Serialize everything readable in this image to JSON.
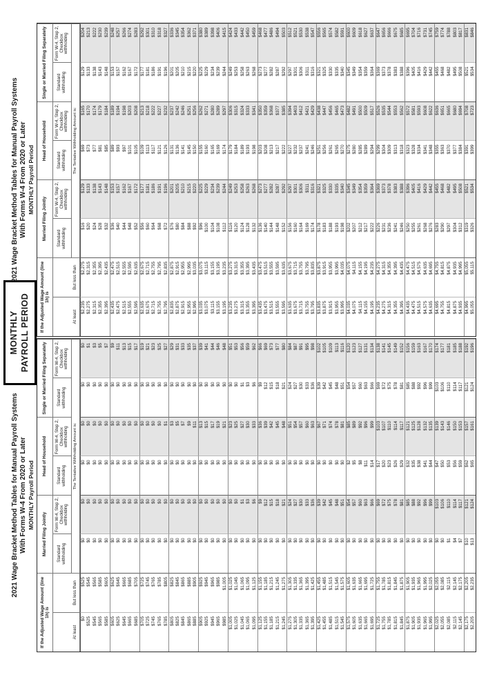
{
  "page": {
    "box_line1": "MONTHLY",
    "box_line2": "PAYROLL PERIOD"
  },
  "header": {
    "wage_label": "If the Adjusted Wage Amount (line 1h) is",
    "at_least": "At least",
    "but_less_than": "But less than",
    "groups": [
      "Married Filing Jointly",
      "Head of Household",
      "Single or Married Filing Separately"
    ],
    "standard": "Standard withholding",
    "checkbox": "Form W-4, Step 2, Checkbox withholding",
    "tentative": "The Tentative Withholding Amount is:"
  },
  "colors": {
    "shade": "#e4e4e4"
  },
  "tables": [
    {
      "title1": "2021 Wage Bracket Method Tables for Manual Payroll Systems",
      "title2": "With Forms W-4 From 2020 or Later",
      "title3": "MONTHLY Payroll Period",
      "rows": [
        [
          0,
          525,
          0,
          0,
          0,
          0,
          0,
          0
        ],
        [
          525,
          545,
          0,
          0,
          0,
          0,
          0,
          1
        ],
        [
          545,
          565,
          0,
          0,
          0,
          0,
          0,
          3
        ],
        [
          565,
          585,
          0,
          0,
          0,
          0,
          0,
          5
        ],
        [
          585,
          605,
          0,
          0,
          0,
          0,
          0,
          7
        ],
        [
          605,
          625,
          0,
          0,
          0,
          0,
          0,
          9
        ],
        [
          625,
          645,
          0,
          0,
          0,
          0,
          0,
          11
        ],
        [
          645,
          665,
          0,
          0,
          0,
          0,
          0,
          13
        ],
        [
          665,
          685,
          0,
          0,
          0,
          0,
          0,
          15
        ],
        [
          685,
          705,
          0,
          0,
          0,
          0,
          0,
          17
        ],
        [
          705,
          725,
          0,
          0,
          0,
          0,
          0,
          19
        ],
        [
          725,
          745,
          0,
          0,
          0,
          0,
          0,
          21
        ],
        [
          745,
          765,
          0,
          0,
          0,
          0,
          0,
          23
        ],
        [
          765,
          785,
          0,
          0,
          0,
          0,
          0,
          25
        ],
        [
          785,
          805,
          0,
          0,
          0,
          1,
          0,
          27
        ],
        [
          805,
          825,
          0,
          0,
          0,
          3,
          0,
          29
        ],
        [
          825,
          845,
          0,
          0,
          0,
          5,
          0,
          31
        ],
        [
          845,
          865,
          0,
          0,
          0,
          7,
          0,
          33
        ],
        [
          865,
          885,
          0,
          0,
          0,
          9,
          0,
          35
        ],
        [
          885,
          905,
          0,
          0,
          0,
          11,
          0,
          37
        ],
        [
          905,
          925,
          0,
          0,
          0,
          13,
          0,
          39
        ],
        [
          925,
          945,
          0,
          0,
          0,
          15,
          0,
          41
        ],
        [
          945,
          965,
          0,
          0,
          0,
          17,
          0,
          44
        ],
        [
          965,
          985,
          0,
          0,
          0,
          19,
          0,
          46
        ],
        [
          985,
          1005,
          0,
          0,
          0,
          21,
          0,
          48
        ],
        [
          1005,
          1025,
          0,
          0,
          0,
          23,
          0,
          51
        ],
        [
          1025,
          1045,
          0,
          0,
          0,
          25,
          0,
          53
        ],
        [
          1045,
          1065,
          0,
          1,
          0,
          27,
          1,
          56
        ],
        [
          1065,
          1095,
          0,
          3,
          0,
          30,
          3,
          59
        ],
        [
          1095,
          1125,
          0,
          6,
          0,
          33,
          6,
          62
        ],
        [
          1125,
          1155,
          0,
          9,
          0,
          36,
          9,
          66
        ],
        [
          1155,
          1185,
          0,
          12,
          0,
          39,
          12,
          69
        ],
        [
          1185,
          1215,
          0,
          15,
          0,
          42,
          15,
          73
        ],
        [
          1215,
          1245,
          0,
          18,
          0,
          45,
          18,
          77
        ],
        [
          1245,
          1275,
          0,
          21,
          0,
          48,
          21,
          80
        ],
        [
          1275,
          1305,
          0,
          24,
          0,
          51,
          24,
          84
        ],
        [
          1305,
          1335,
          0,
          27,
          0,
          54,
          27,
          87
        ],
        [
          1335,
          1365,
          0,
          30,
          0,
          57,
          30,
          91
        ],
        [
          1365,
          1395,
          0,
          33,
          0,
          60,
          33,
          95
        ],
        [
          1395,
          1425,
          0,
          36,
          0,
          63,
          36,
          98
        ],
        [
          1425,
          1455,
          0,
          39,
          0,
          67,
          39,
          102
        ],
        [
          1455,
          1485,
          0,
          42,
          0,
          71,
          42,
          105
        ],
        [
          1485,
          1515,
          0,
          45,
          0,
          74,
          45,
          109
        ],
        [
          1515,
          1545,
          0,
          48,
          0,
          78,
          48,
          113
        ],
        [
          1545,
          1575,
          0,
          51,
          0,
          81,
          51,
          116
        ],
        [
          1575,
          1605,
          0,
          54,
          2,
          85,
          54,
          120
        ],
        [
          1605,
          1635,
          0,
          57,
          5,
          89,
          57,
          123
        ],
        [
          1635,
          1665,
          0,
          60,
          8,
          92,
          60,
          127
        ],
        [
          1665,
          1695,
          0,
          63,
          11,
          96,
          63,
          131
        ],
        [
          1695,
          1725,
          0,
          66,
          14,
          99,
          66,
          134
        ],
        [
          1725,
          1755,
          0,
          69,
          17,
          103,
          69,
          138
        ],
        [
          1755,
          1785,
          0,
          72,
          20,
          107,
          72,
          141
        ],
        [
          1785,
          1815,
          0,
          75,
          23,
          110,
          75,
          145
        ],
        [
          1815,
          1845,
          0,
          78,
          26,
          114,
          78,
          149
        ],
        [
          1845,
          1875,
          0,
          81,
          29,
          117,
          81,
          152
        ],
        [
          1875,
          1905,
          0,
          85,
          32,
          121,
          85,
          156
        ],
        [
          1905,
          1935,
          0,
          88,
          35,
          125,
          88,
          159
        ],
        [
          1935,
          1965,
          0,
          92,
          38,
          128,
          92,
          163
        ],
        [
          1965,
          1995,
          0,
          96,
          41,
          132,
          96,
          167
        ],
        [
          1995,
          2025,
          0,
          99,
          44,
          135,
          99,
          170
        ],
        [
          2025,
          2055,
          0,
          103,
          47,
          139,
          103,
          174
        ],
        [
          2055,
          2085,
          0,
          106,
          50,
          143,
          106,
          177
        ],
        [
          2085,
          2115,
          1,
          110,
          53,
          146,
          110,
          181
        ],
        [
          2115,
          2145,
          4,
          114,
          56,
          150,
          114,
          185
        ],
        [
          2145,
          2175,
          7,
          117,
          59,
          153,
          117,
          188
        ],
        [
          2175,
          2205,
          10,
          121,
          62,
          157,
          121,
          192
        ],
        [
          2205,
          2235,
          13,
          124,
          65,
          161,
          124,
          196
        ]
      ]
    },
    {
      "title1": "2021 Wage Bracket Method Tables for Manual Payroll Systems",
      "title2": "With Forms W-4 From 2020 or Later",
      "title3": "MONTHLY Payroll Period",
      "rows": [
        [
          2235,
          2275,
          16,
          129,
          69,
          165,
          129,
          204
        ],
        [
          2275,
          2315,
          20,
          133,
          73,
          170,
          133,
          213
        ],
        [
          2315,
          2355,
          24,
          138,
          77,
          174,
          138,
          222
        ],
        [
          2355,
          2395,
          28,
          143,
          81,
          179,
          143,
          230
        ],
        [
          2395,
          2435,
          32,
          148,
          85,
          184,
          148,
          239
        ],
        [
          2435,
          2475,
          36,
          153,
          89,
          189,
          153,
          248
        ],
        [
          2475,
          2515,
          40,
          157,
          93,
          194,
          157,
          257
        ],
        [
          2515,
          2555,
          44,
          162,
          97,
          198,
          162,
          266
        ],
        [
          2555,
          2595,
          48,
          167,
          101,
          203,
          167,
          274
        ],
        [
          2595,
          2635,
          52,
          172,
          105,
          208,
          172,
          283
        ],
        [
          2635,
          2675,
          56,
          177,
          109,
          213,
          177,
          292
        ],
        [
          2675,
          2715,
          60,
          181,
          113,
          218,
          181,
          301
        ],
        [
          2715,
          2755,
          64,
          186,
          117,
          222,
          186,
          310
        ],
        [
          2755,
          2795,
          68,
          191,
          121,
          227,
          191,
          318
        ],
        [
          2795,
          2835,
          72,
          196,
          126,
          232,
          196,
          327
        ],
        [
          2835,
          2875,
          76,
          201,
          131,
          237,
          201,
          336
        ],
        [
          2875,
          2915,
          80,
          205,
          136,
          242,
          205,
          345
        ],
        [
          2915,
          2955,
          84,
          210,
          141,
          246,
          210,
          354
        ],
        [
          2955,
          2995,
          88,
          215,
          145,
          251,
          215,
          362
        ],
        [
          2995,
          3035,
          92,
          220,
          150,
          256,
          220,
          371
        ],
        [
          3035,
          3075,
          96,
          225,
          155,
          262,
          225,
          380
        ],
        [
          3075,
          3115,
          100,
          229,
          160,
          271,
          229,
          389
        ],
        [
          3115,
          3155,
          104,
          234,
          165,
          280,
          234,
          398
        ],
        [
          3155,
          3195,
          108,
          239,
          169,
          289,
          239,
          406
        ],
        [
          3195,
          3235,
          112,
          244,
          174,
          297,
          244,
          415
        ],
        [
          3235,
          3275,
          116,
          249,
          179,
          306,
          249,
          424
        ],
        [
          3275,
          3315,
          120,
          253,
          184,
          315,
          253,
          433
        ],
        [
          3315,
          3355,
          124,
          258,
          189,
          324,
          258,
          442
        ],
        [
          3355,
          3395,
          128,
          263,
          193,
          333,
          263,
          450
        ],
        [
          3395,
          3435,
          132,
          268,
          198,
          341,
          268,
          459
        ],
        [
          3435,
          3475,
          136,
          273,
          203,
          350,
          273,
          468
        ],
        [
          3475,
          3515,
          140,
          277,
          208,
          359,
          277,
          477
        ],
        [
          3515,
          3555,
          144,
          282,
          213,
          368,
          282,
          486
        ],
        [
          3555,
          3595,
          148,
          287,
          217,
          377,
          287,
          494
        ],
        [
          3595,
          3635,
          152,
          292,
          222,
          385,
          292,
          503
        ],
        [
          3635,
          3675,
          156,
          297,
          227,
          394,
          297,
          512
        ],
        [
          3675,
          3715,
          160,
          301,
          232,
          403,
          301,
          521
        ],
        [
          3715,
          3755,
          164,
          306,
          237,
          412,
          306,
          530
        ],
        [
          3755,
          3795,
          169,
          311,
          241,
          421,
          311,
          538
        ],
        [
          3795,
          3835,
          174,
          316,
          246,
          429,
          316,
          547
        ],
        [
          3835,
          3875,
          178,
          321,
          251,
          438,
          321,
          556
        ],
        [
          3875,
          3915,
          183,
          325,
          256,
          447,
          325,
          565
        ],
        [
          3915,
          3955,
          188,
          330,
          261,
          456,
          330,
          574
        ],
        [
          3955,
          3995,
          193,
          335,
          265,
          465,
          335,
          582
        ],
        [
          3995,
          4035,
          198,
          340,
          270,
          473,
          340,
          591
        ],
        [
          4035,
          4075,
          202,
          345,
          275,
          482,
          345,
          600
        ],
        [
          4075,
          4115,
          207,
          349,
          280,
          491,
          349,
          609
        ],
        [
          4115,
          4155,
          212,
          354,
          285,
          500,
          354,
          618
        ],
        [
          4155,
          4195,
          217,
          359,
          289,
          509,
          359,
          627
        ],
        [
          4195,
          4235,
          222,
          364,
          294,
          517,
          364,
          637
        ],
        [
          4235,
          4275,
          226,
          369,
          299,
          526,
          369,
          647
        ],
        [
          4275,
          4315,
          231,
          373,
          304,
          535,
          373,
          656
        ],
        [
          4315,
          4355,
          236,
          378,
          309,
          544,
          378,
          666
        ],
        [
          4355,
          4395,
          241,
          383,
          313,
          553,
          383,
          675
        ],
        [
          4395,
          4435,
          246,
          388,
          318,
          562,
          388,
          685
        ],
        [
          4435,
          4475,
          250,
          396,
          323,
          572,
          396,
          695
        ],
        [
          4475,
          4515,
          255,
          405,
          328,
          581,
          405,
          704
        ],
        [
          4515,
          4575,
          261,
          416,
          334,
          593,
          416,
          716
        ],
        [
          4575,
          4635,
          268,
          429,
          341,
          608,
          429,
          731
        ],
        [
          4635,
          4695,
          276,
          442,
          348,
          622,
          442,
          745
        ],
        [
          4695,
          4755,
          283,
          455,
          355,
          636,
          455,
          759
        ],
        [
          4755,
          4815,
          290,
          468,
          363,
          651,
          468,
          774
        ],
        [
          4815,
          4875,
          297,
          482,
          370,
          665,
          482,
          788
        ],
        [
          4875,
          4935,
          304,
          495,
          377,
          680,
          495,
          803
        ],
        [
          4935,
          4995,
          312,
          508,
          384,
          694,
          508,
          817
        ],
        [
          4995,
          5055,
          319,
          521,
          391,
          708,
          521,
          831
        ],
        [
          5055,
          5115,
          326,
          534,
          399,
          723,
          534,
          846
        ]
      ]
    }
  ]
}
